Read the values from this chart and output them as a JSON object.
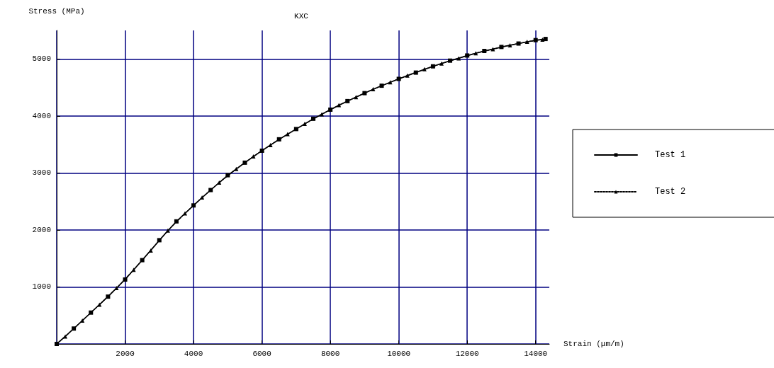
{
  "chart_data": {
    "type": "line",
    "title": "KXC",
    "xlabel": "Strain (μm/m)",
    "ylabel": "Stress (MPa)",
    "xlim": [
      0,
      14400
    ],
    "ylim": [
      0,
      5500
    ],
    "xticks": [
      {
        "value": 0,
        "label": null
      },
      2000,
      4000,
      6000,
      8000,
      10000,
      12000,
      14000
    ],
    "yticks": [
      {
        "value": 0,
        "label": null
      },
      1000,
      2000,
      3000,
      4000,
      5000
    ],
    "grid": true,
    "legend": "right",
    "series": [
      {
        "name": "Test 1",
        "color": "#000000",
        "marker": "square",
        "line_style": "solid",
        "x": [
          0,
          500,
          1000,
          1500,
          2000,
          2500,
          3000,
          3500,
          4000,
          4500,
          5000,
          5500,
          6000,
          6500,
          7000,
          7500,
          8000,
          8500,
          9000,
          9500,
          10000,
          10500,
          11000,
          11500,
          12000,
          12500,
          13000,
          13500,
          14000,
          14290
        ],
        "values": [
          0,
          270,
          550,
          830,
          1130,
          1470,
          1820,
          2150,
          2430,
          2700,
          2960,
          3180,
          3390,
          3590,
          3770,
          3950,
          4110,
          4260,
          4400,
          4530,
          4650,
          4760,
          4870,
          4970,
          5060,
          5140,
          5210,
          5270,
          5330,
          5350
        ]
      },
      {
        "name": "Test 2",
        "color": "#000000",
        "marker": "triangle",
        "line_style": "dotted",
        "x": [
          0,
          250,
          750,
          1250,
          1750,
          2250,
          2750,
          3250,
          3750,
          4250,
          4750,
          5250,
          5750,
          6250,
          6750,
          7250,
          7750,
          8250,
          8750,
          9250,
          9750,
          10250,
          10750,
          11250,
          11750,
          12250,
          12750,
          13250,
          13750,
          14200
        ],
        "values": [
          0,
          130,
          410,
          690,
          980,
          1300,
          1640,
          1990,
          2290,
          2570,
          2830,
          3070,
          3290,
          3490,
          3680,
          3860,
          4030,
          4190,
          4330,
          4470,
          4590,
          4710,
          4820,
          4920,
          5010,
          5100,
          5170,
          5240,
          5300,
          5340
        ]
      }
    ]
  }
}
